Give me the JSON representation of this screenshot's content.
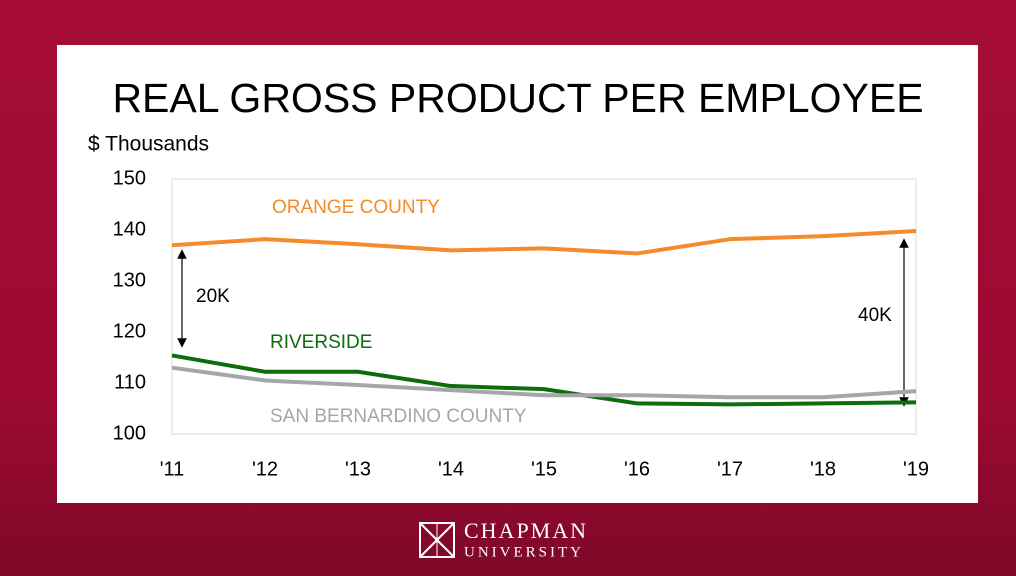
{
  "chart_data": {
    "type": "line",
    "title": "REAL GROSS PRODUCT PER EMPLOYEE",
    "y_label": "$ Thousands",
    "categories": [
      "'11",
      "'12",
      "'13",
      "'14",
      "'15",
      "'16",
      "'17",
      "'18",
      "'19"
    ],
    "series": [
      {
        "name": "ORANGE COUNTY",
        "color": "#f28c28",
        "values": [
          137,
          138.2,
          137.2,
          136,
          136.4,
          135.4,
          138.2,
          138.8,
          139.8
        ]
      },
      {
        "name": "RIVERSIDE",
        "color": "#0e6b0e",
        "values": [
          115.4,
          112.2,
          112.2,
          109.4,
          108.8,
          106,
          105.8,
          106,
          106.2
        ]
      },
      {
        "name": "SAN BERNARDINO COUNTY",
        "color": "#a6a6a6",
        "values": [
          113,
          110.5,
          109.6,
          108.6,
          107.6,
          107.6,
          107.2,
          107.2,
          108.4
        ]
      }
    ],
    "annotations": [
      "20K",
      "40K"
    ],
    "ylim": [
      100,
      150
    ],
    "yticks": [
      100,
      110,
      120,
      130,
      140,
      150
    ],
    "grid": false
  },
  "brand": {
    "name": "CHAPMAN",
    "subtitle": "UNIVERSITY"
  }
}
